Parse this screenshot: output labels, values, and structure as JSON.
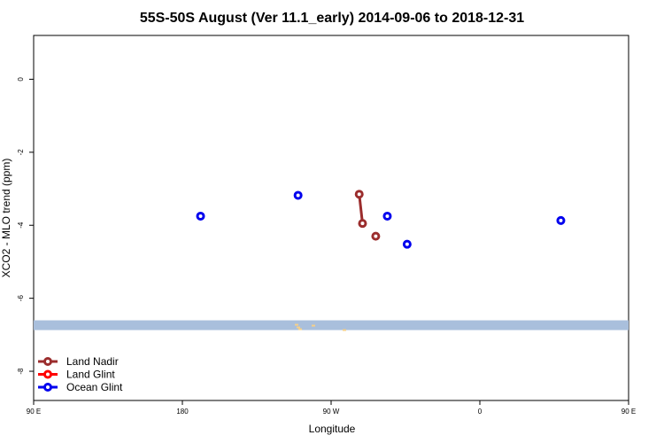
{
  "chart_data": {
    "type": "line",
    "title": "55S-50S August (Ver 11.1_early)   2014-09-06 to 2018-12-31",
    "xlabel": "Longitude",
    "ylabel": "XCO2 - MLO trend (ppm)",
    "xlim": [
      90,
      450
    ],
    "ylim": [
      -8.8,
      1.2
    ],
    "x_ticks": [
      {
        "value": 90,
        "label": "90 E"
      },
      {
        "value": 180,
        "label": "180"
      },
      {
        "value": 270,
        "label": "90 W"
      },
      {
        "value": 360,
        "label": "0"
      },
      {
        "value": 450,
        "label": "90 E"
      },
      {
        "value": 540,
        "label": "180"
      }
    ],
    "y_ticks": [
      {
        "value": 0,
        "label": "0"
      },
      {
        "value": -2,
        "label": "-2"
      },
      {
        "value": -4,
        "label": "-4"
      },
      {
        "value": -6,
        "label": "-6"
      },
      {
        "value": -8,
        "label": "-8"
      }
    ],
    "series": [
      {
        "name": "Land Nadir",
        "color": "#9b2d2d",
        "segments": [
          [
            {
              "x": 287,
              "y": -3.15
            },
            {
              "x": 289,
              "y": -3.95
            }
          ],
          [
            {
              "x": 297,
              "y": -4.3
            }
          ]
        ]
      },
      {
        "name": "Land Glint",
        "color": "#ff0000",
        "segments": []
      },
      {
        "name": "Ocean Glint",
        "color": "#0000ee",
        "segments": [
          [
            {
              "x": 191,
              "y": -3.75
            }
          ],
          [
            {
              "x": 250,
              "y": -3.18
            }
          ],
          [
            {
              "x": 304,
              "y": -3.75
            }
          ],
          [
            {
              "x": 316,
              "y": -4.52
            }
          ],
          [
            {
              "x": 409,
              "y": -3.87
            }
          ]
        ]
      }
    ],
    "map_strip": {
      "y_center": -6.75,
      "color": "#a9bfdc",
      "land_color": "#f5d08a"
    },
    "legend_position": "bottom-left",
    "grid": false
  }
}
